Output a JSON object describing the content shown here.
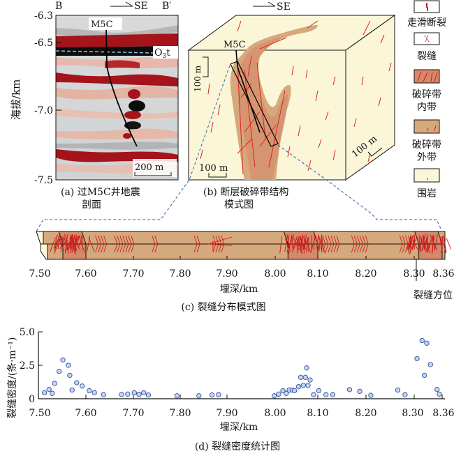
{
  "panel_a": {
    "left_label": "B",
    "direction_label": "SE",
    "right_label": "B′",
    "well_label": "M5C",
    "horizon_label_main": "O",
    "horizon_label_sub": "3",
    "horizon_label_end": "t",
    "scale_label": "200 m",
    "ylabel": "海拔/km",
    "yticks": [
      "-6.3",
      "-6.5",
      "-7.0",
      "-7.5"
    ],
    "caption_line1": "(a) 过M5C井地震",
    "caption_line2": "剖面"
  },
  "panel_b": {
    "direction_label": "SE",
    "well_label": "M5C",
    "scale_vertical": "100 m",
    "scale_horizontal": "100 m",
    "scale_depth": "100 m",
    "caption_line1": "(b) 断层破碎带结构",
    "caption_line2": "模式图"
  },
  "legend": {
    "items": [
      {
        "label": "走滑断裂",
        "swatch_color": "#ffffff",
        "mark": "strike-slip-fault"
      },
      {
        "label": "裂缝",
        "swatch_color": "#ffffff",
        "mark": "fracture"
      },
      {
        "label_line1": "破碎带",
        "label_line2": "内带",
        "swatch_color": "#d4896a",
        "mark": "inner-zone"
      },
      {
        "label_line1": "破碎带",
        "label_line2": "外带",
        "swatch_color": "#d6a97c",
        "mark": "outer-zone"
      },
      {
        "label": "围岩",
        "swatch_color": "#fbf6d8",
        "mark": "host-rock"
      }
    ]
  },
  "panel_c": {
    "xticks": [
      "7.50",
      "7.60",
      "7.70",
      "7.80",
      "7.90",
      "8.00",
      "8.10",
      "8.20",
      "8.30",
      "8.36"
    ],
    "xlabel": "埋深/km",
    "annotation": "裂缝方位",
    "caption": "(c) 裂缝分布模式图",
    "inner_zones_km": [
      [
        7.55,
        7.6
      ],
      [
        8.03,
        8.1
      ],
      [
        8.31,
        8.36
      ]
    ],
    "colors": {
      "inner": "#d4896a",
      "outer": "#d6a97c",
      "host": "#fbf6d8",
      "fracture": "#cc1a1a"
    }
  },
  "chart_data": {
    "type": "scatter",
    "title": "(d) 裂缝密度统计图",
    "xlabel": "埋深/km",
    "ylabel": "裂缝密度/(条·m⁻¹)",
    "xlim": [
      7.5,
      8.36
    ],
    "ylim": [
      0,
      5.0
    ],
    "xticks": [
      "7.50",
      "7.60",
      "7.70",
      "7.80",
      "7.90",
      "8.00",
      "8.10",
      "8.20",
      "8.30",
      "8.36"
    ],
    "xtick_values": [
      7.5,
      7.6,
      7.7,
      7.8,
      7.9,
      8.0,
      8.1,
      8.2,
      8.3,
      8.36
    ],
    "yticks": [
      "0",
      "2.5",
      "5.0"
    ],
    "ytick_values": [
      0,
      2.5,
      5.0
    ],
    "grid": false,
    "marker_color": "#c6d4ee",
    "marker_edge": "#2b4fa0",
    "points": [
      {
        "x": 7.51,
        "y": 0.45
      },
      {
        "x": 7.52,
        "y": 0.7
      },
      {
        "x": 7.527,
        "y": 0.4
      },
      {
        "x": 7.532,
        "y": 1.15
      },
      {
        "x": 7.542,
        "y": 2.05
      },
      {
        "x": 7.55,
        "y": 2.9
      },
      {
        "x": 7.562,
        "y": 2.5
      },
      {
        "x": 7.565,
        "y": 1.75
      },
      {
        "x": 7.57,
        "y": 0.65
      },
      {
        "x": 7.58,
        "y": 1.2
      },
      {
        "x": 7.592,
        "y": 0.95
      },
      {
        "x": 7.607,
        "y": 0.6
      },
      {
        "x": 7.618,
        "y": 0.45
      },
      {
        "x": 7.637,
        "y": 0.3
      },
      {
        "x": 7.675,
        "y": 0.32
      },
      {
        "x": 7.688,
        "y": 0.35
      },
      {
        "x": 7.702,
        "y": 0.45
      },
      {
        "x": 7.712,
        "y": 0.33
      },
      {
        "x": 7.722,
        "y": 0.45
      },
      {
        "x": 7.732,
        "y": 0.28
      },
      {
        "x": 7.793,
        "y": 0.22
      },
      {
        "x": 7.84,
        "y": 0.22
      },
      {
        "x": 7.868,
        "y": 0.28
      },
      {
        "x": 7.882,
        "y": 0.3
      },
      {
        "x": 7.998,
        "y": 0.22
      },
      {
        "x": 8.008,
        "y": 0.35
      },
      {
        "x": 8.018,
        "y": 0.6
      },
      {
        "x": 8.026,
        "y": 0.4
      },
      {
        "x": 8.033,
        "y": 0.65
      },
      {
        "x": 8.04,
        "y": 0.65
      },
      {
        "x": 8.045,
        "y": 0.6
      },
      {
        "x": 8.055,
        "y": 0.9
      },
      {
        "x": 8.06,
        "y": 1.6
      },
      {
        "x": 8.066,
        "y": 1.0
      },
      {
        "x": 8.071,
        "y": 1.6
      },
      {
        "x": 8.074,
        "y": 2.3
      },
      {
        "x": 8.077,
        "y": 1.0
      },
      {
        "x": 8.082,
        "y": 1.4
      },
      {
        "x": 8.09,
        "y": 0.3
      },
      {
        "x": 8.102,
        "y": 0.6
      },
      {
        "x": 8.117,
        "y": 0.3
      },
      {
        "x": 8.131,
        "y": 0.3
      },
      {
        "x": 8.166,
        "y": 0.68
      },
      {
        "x": 8.187,
        "y": 0.55
      },
      {
        "x": 8.21,
        "y": 0.25
      },
      {
        "x": 8.266,
        "y": 0.65
      },
      {
        "x": 8.281,
        "y": 0.3
      },
      {
        "x": 8.306,
        "y": 3.0
      },
      {
        "x": 8.317,
        "y": 4.35
      },
      {
        "x": 8.322,
        "y": 1.75
      },
      {
        "x": 8.327,
        "y": 4.15
      },
      {
        "x": 8.335,
        "y": 2.55
      },
      {
        "x": 8.349,
        "y": 0.7
      },
      {
        "x": 8.354,
        "y": 0.35
      }
    ]
  }
}
